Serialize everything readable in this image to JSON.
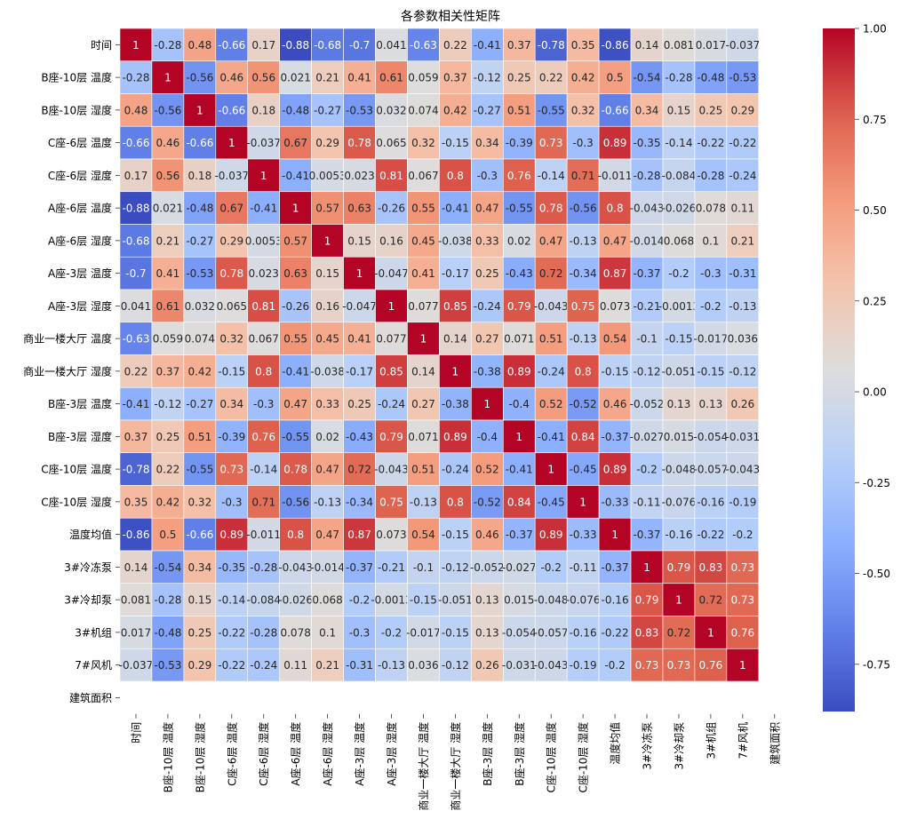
{
  "chart_data": {
    "type": "heatmap",
    "title": "各参数相关性矩阵",
    "xlabel": "",
    "ylabel": "",
    "variables": [
      "时间",
      "B座-10层 温度",
      "B座-10层 湿度",
      "C座-6层 温度",
      "C座-6层 湿度",
      "A座-6层 温度",
      "A座-6层 湿度",
      "A座-3层 温度",
      "A座-3层 湿度",
      "商业一楼大厅 温度",
      "商业一楼大厅 湿度",
      "B座-3层 温度",
      "B座-3层 湿度",
      "C座-10层 温度",
      "C座-10层 湿度",
      "温度均值",
      "3#冷冻泵",
      "3#冷却泵",
      "3#机组",
      "7#风机",
      "建筑面积"
    ],
    "matrix": [
      [
        1,
        -0.28,
        0.48,
        -0.66,
        0.17,
        -0.88,
        -0.68,
        -0.7,
        0.041,
        -0.63,
        0.22,
        -0.41,
        0.37,
        -0.78,
        0.35,
        -0.86,
        0.14,
        0.081,
        0.017,
        -0.037,
        null
      ],
      [
        -0.28,
        1,
        -0.56,
        0.46,
        0.56,
        0.021,
        0.21,
        0.41,
        0.61,
        0.059,
        0.37,
        -0.12,
        0.25,
        0.22,
        0.42,
        0.5,
        -0.54,
        -0.28,
        -0.48,
        -0.53,
        null
      ],
      [
        0.48,
        -0.56,
        1,
        -0.66,
        0.18,
        -0.48,
        -0.27,
        -0.53,
        0.032,
        0.074,
        0.42,
        -0.27,
        0.51,
        -0.55,
        0.32,
        -0.66,
        0.34,
        0.15,
        0.25,
        0.29,
        null
      ],
      [
        -0.66,
        0.46,
        -0.66,
        1,
        -0.037,
        0.67,
        0.29,
        0.78,
        0.065,
        0.32,
        -0.15,
        0.34,
        -0.39,
        0.73,
        -0.3,
        0.89,
        -0.35,
        -0.14,
        -0.22,
        -0.22,
        null
      ],
      [
        0.17,
        0.56,
        0.18,
        -0.037,
        1,
        -0.41,
        0.0053,
        0.023,
        0.81,
        0.067,
        0.8,
        -0.3,
        0.76,
        -0.14,
        0.71,
        -0.011,
        -0.28,
        -0.084,
        -0.28,
        -0.24,
        null
      ],
      [
        -0.88,
        0.021,
        -0.48,
        0.67,
        -0.41,
        1,
        0.57,
        0.63,
        -0.26,
        0.55,
        -0.41,
        0.47,
        -0.55,
        0.78,
        -0.56,
        0.8,
        -0.043,
        -0.026,
        0.078,
        0.11,
        null
      ],
      [
        -0.68,
        0.21,
        -0.27,
        0.29,
        0.0053,
        0.57,
        1,
        0.15,
        0.16,
        0.45,
        -0.038,
        0.33,
        0.02,
        0.47,
        -0.13,
        0.47,
        -0.014,
        0.068,
        0.1,
        0.21,
        null
      ],
      [
        -0.7,
        0.41,
        -0.53,
        0.78,
        0.023,
        0.63,
        0.15,
        1,
        -0.047,
        0.41,
        -0.17,
        0.25,
        -0.43,
        0.72,
        -0.34,
        0.87,
        -0.37,
        -0.2,
        -0.3,
        -0.31,
        null
      ],
      [
        0.041,
        0.61,
        0.032,
        0.065,
        0.81,
        -0.26,
        0.16,
        -0.047,
        1,
        0.077,
        0.85,
        -0.24,
        0.79,
        -0.043,
        0.75,
        0.073,
        -0.21,
        -0.0013,
        -0.2,
        -0.13,
        null
      ],
      [
        -0.63,
        0.059,
        0.074,
        0.32,
        0.067,
        0.55,
        0.45,
        0.41,
        0.077,
        1,
        0.14,
        0.27,
        0.071,
        0.51,
        -0.13,
        0.54,
        -0.1,
        -0.15,
        -0.017,
        0.036,
        null
      ],
      [
        0.22,
        0.37,
        0.42,
        -0.15,
        0.8,
        -0.41,
        -0.038,
        -0.17,
        0.85,
        0.14,
        1,
        -0.38,
        0.89,
        -0.24,
        0.8,
        -0.15,
        -0.12,
        -0.051,
        -0.15,
        -0.12,
        null
      ],
      [
        -0.41,
        -0.12,
        -0.27,
        0.34,
        -0.3,
        0.47,
        0.33,
        0.25,
        -0.24,
        0.27,
        -0.38,
        1,
        -0.4,
        0.52,
        -0.52,
        0.46,
        -0.052,
        0.13,
        0.13,
        0.26,
        null
      ],
      [
        0.37,
        0.25,
        0.51,
        -0.39,
        0.76,
        -0.55,
        0.02,
        -0.43,
        0.79,
        0.071,
        0.89,
        -0.4,
        1,
        -0.41,
        0.84,
        -0.37,
        -0.027,
        0.015,
        -0.054,
        -0.031,
        null
      ],
      [
        -0.78,
        0.22,
        -0.55,
        0.73,
        -0.14,
        0.78,
        0.47,
        0.72,
        -0.043,
        0.51,
        -0.24,
        0.52,
        -0.41,
        1,
        -0.45,
        0.89,
        -0.2,
        -0.048,
        -0.057,
        -0.043,
        null
      ],
      [
        0.35,
        0.42,
        0.32,
        -0.3,
        0.71,
        -0.56,
        -0.13,
        -0.34,
        0.75,
        -0.13,
        0.8,
        -0.52,
        0.84,
        -0.45,
        1,
        -0.33,
        -0.11,
        -0.076,
        -0.16,
        -0.19,
        null
      ],
      [
        -0.86,
        0.5,
        -0.66,
        0.89,
        -0.011,
        0.8,
        0.47,
        0.87,
        0.073,
        0.54,
        -0.15,
        0.46,
        -0.37,
        0.89,
        -0.33,
        1,
        -0.37,
        -0.16,
        -0.22,
        -0.2,
        null
      ],
      [
        0.14,
        -0.54,
        0.34,
        -0.35,
        -0.28,
        -0.043,
        -0.014,
        -0.37,
        -0.21,
        -0.1,
        -0.12,
        -0.052,
        -0.027,
        -0.2,
        -0.11,
        -0.37,
        1,
        0.79,
        0.83,
        0.73,
        null
      ],
      [
        0.081,
        -0.28,
        0.15,
        -0.14,
        -0.084,
        -0.026,
        0.068,
        -0.2,
        -0.0013,
        -0.15,
        -0.051,
        0.13,
        0.015,
        -0.048,
        -0.076,
        -0.16,
        0.79,
        1,
        0.72,
        0.73,
        null
      ],
      [
        0.017,
        -0.48,
        0.25,
        -0.22,
        -0.28,
        0.078,
        0.1,
        -0.3,
        -0.2,
        -0.017,
        -0.15,
        0.13,
        -0.054,
        -0.057,
        -0.16,
        -0.22,
        0.83,
        0.72,
        1,
        0.76,
        null
      ],
      [
        -0.037,
        -0.53,
        0.29,
        -0.22,
        -0.24,
        0.11,
        0.21,
        -0.31,
        -0.13,
        0.036,
        -0.12,
        0.26,
        -0.031,
        -0.043,
        -0.19,
        -0.2,
        0.73,
        0.73,
        0.76,
        1,
        null
      ],
      [
        null,
        null,
        null,
        null,
        null,
        null,
        null,
        null,
        null,
        null,
        null,
        null,
        null,
        null,
        null,
        null,
        null,
        null,
        null,
        null,
        null
      ]
    ],
    "colorbar": {
      "colormap": "coolwarm",
      "range": [
        -0.88,
        1.0
      ],
      "ticks": [
        1.0,
        0.75,
        0.5,
        0.25,
        0.0,
        -0.25,
        -0.5,
        -0.75
      ],
      "tick_labels": [
        "1.00",
        "0.75",
        "0.50",
        "0.25",
        "0.00",
        "-0.25",
        "-0.50",
        "-0.75"
      ],
      "position": "right"
    }
  }
}
